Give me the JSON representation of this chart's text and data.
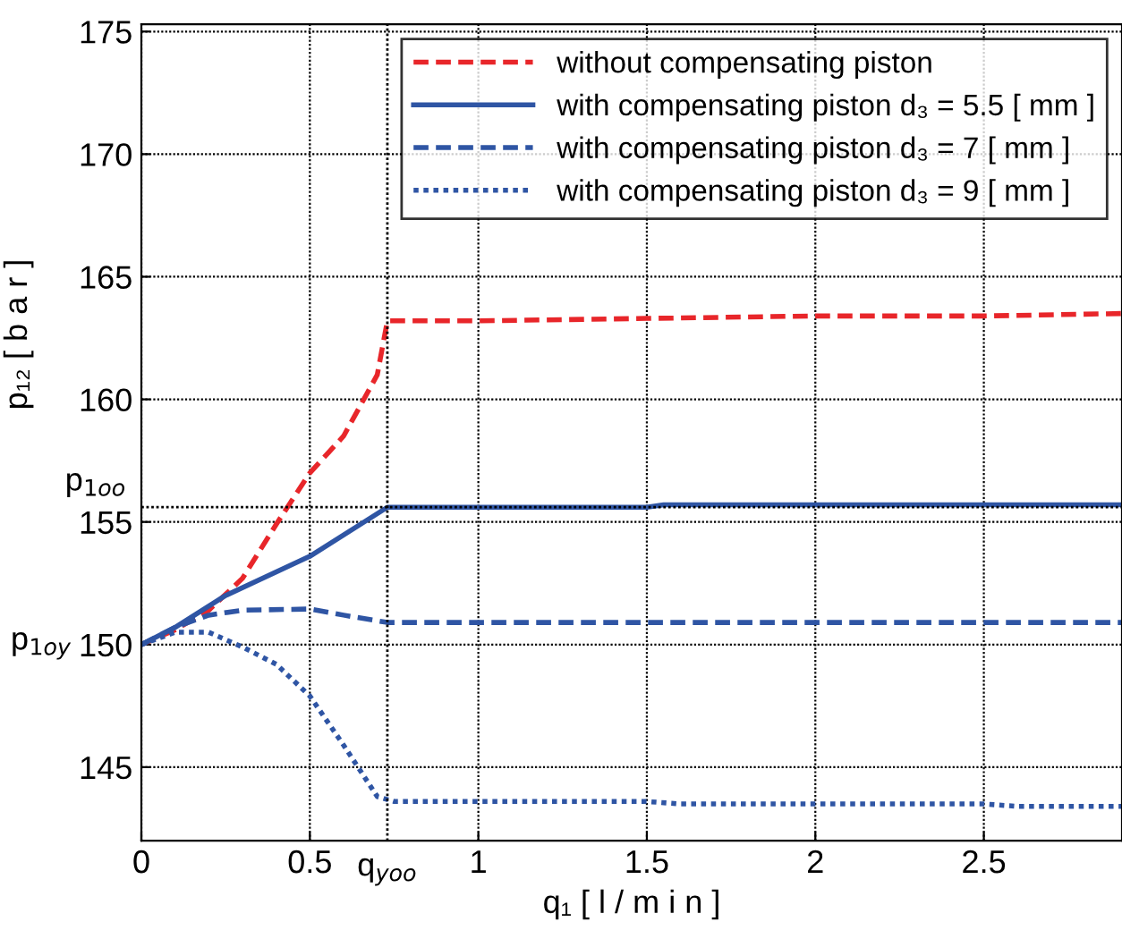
{
  "chart_data": {
    "type": "line",
    "xlabel": "q₁ [ l / m i n ]",
    "ylabel": "p₁₂ [ b a r ]",
    "xlim": [
      0,
      2.91
    ],
    "ylim": [
      142,
      175.3
    ],
    "xticks": [
      0,
      0.5,
      1,
      1.5,
      2,
      2.5
    ],
    "yticks": [
      145,
      150,
      155,
      160,
      165,
      170,
      175
    ],
    "ref_lines": [
      {
        "axis": "x",
        "value": 0.73,
        "label": "q$_{yoo}$"
      },
      {
        "axis": "y",
        "value": 155.6,
        "label": "p$_{1oo}$"
      }
    ],
    "grid": true,
    "legend": "top right",
    "annotations": [
      {
        "text": "p$_{1oy}$",
        "x": 0,
        "y": 150
      }
    ],
    "series": [
      {
        "name": "without compensating piston",
        "color": "#e8262a",
        "line_style": "dashed",
        "x": [
          0,
          0.1,
          0.2,
          0.3,
          0.4,
          0.5,
          0.6,
          0.7,
          0.73,
          1,
          1.5,
          2,
          2.5,
          2.91
        ],
        "values": [
          150,
          150.6,
          151.4,
          152.7,
          154.9,
          157,
          158.5,
          161,
          163.2,
          163.2,
          163.3,
          163.4,
          163.4,
          163.5
        ]
      },
      {
        "name": "with compensating piston d₃ = 5.5 [ mm ]",
        "color": "#2f55a4",
        "line_style": "solid",
        "x": [
          0,
          0.1,
          0.25,
          0.5,
          0.73,
          1,
          1.5,
          1.55,
          2,
          2.5,
          2.91
        ],
        "values": [
          150,
          150.7,
          152,
          153.6,
          155.6,
          155.6,
          155.6,
          155.7,
          155.7,
          155.7,
          155.7
        ]
      },
      {
        "name": "with compensating piston d₃ = 7 [ mm ]",
        "color": "#2f55a4",
        "line_style": "dashed",
        "x": [
          0,
          0.1,
          0.2,
          0.3,
          0.5,
          0.6,
          0.73,
          1,
          1.5,
          2,
          2.5,
          2.91
        ],
        "values": [
          150,
          150.7,
          151.2,
          151.4,
          151.45,
          151.2,
          150.9,
          150.9,
          150.9,
          150.9,
          150.9,
          150.9
        ]
      },
      {
        "name": "with compensating piston d₃ = 9 [ mm ]",
        "color": "#2f55a4",
        "line_style": "dotted",
        "x": [
          0,
          0.1,
          0.2,
          0.3,
          0.4,
          0.5,
          0.6,
          0.7,
          0.75,
          1.5,
          1.6,
          2.5,
          2.6,
          2.91
        ],
        "values": [
          150,
          150.5,
          150.5,
          149.9,
          149.2,
          147.9,
          145.9,
          143.8,
          143.6,
          143.6,
          143.5,
          143.5,
          143.4,
          143.4
        ]
      }
    ]
  }
}
